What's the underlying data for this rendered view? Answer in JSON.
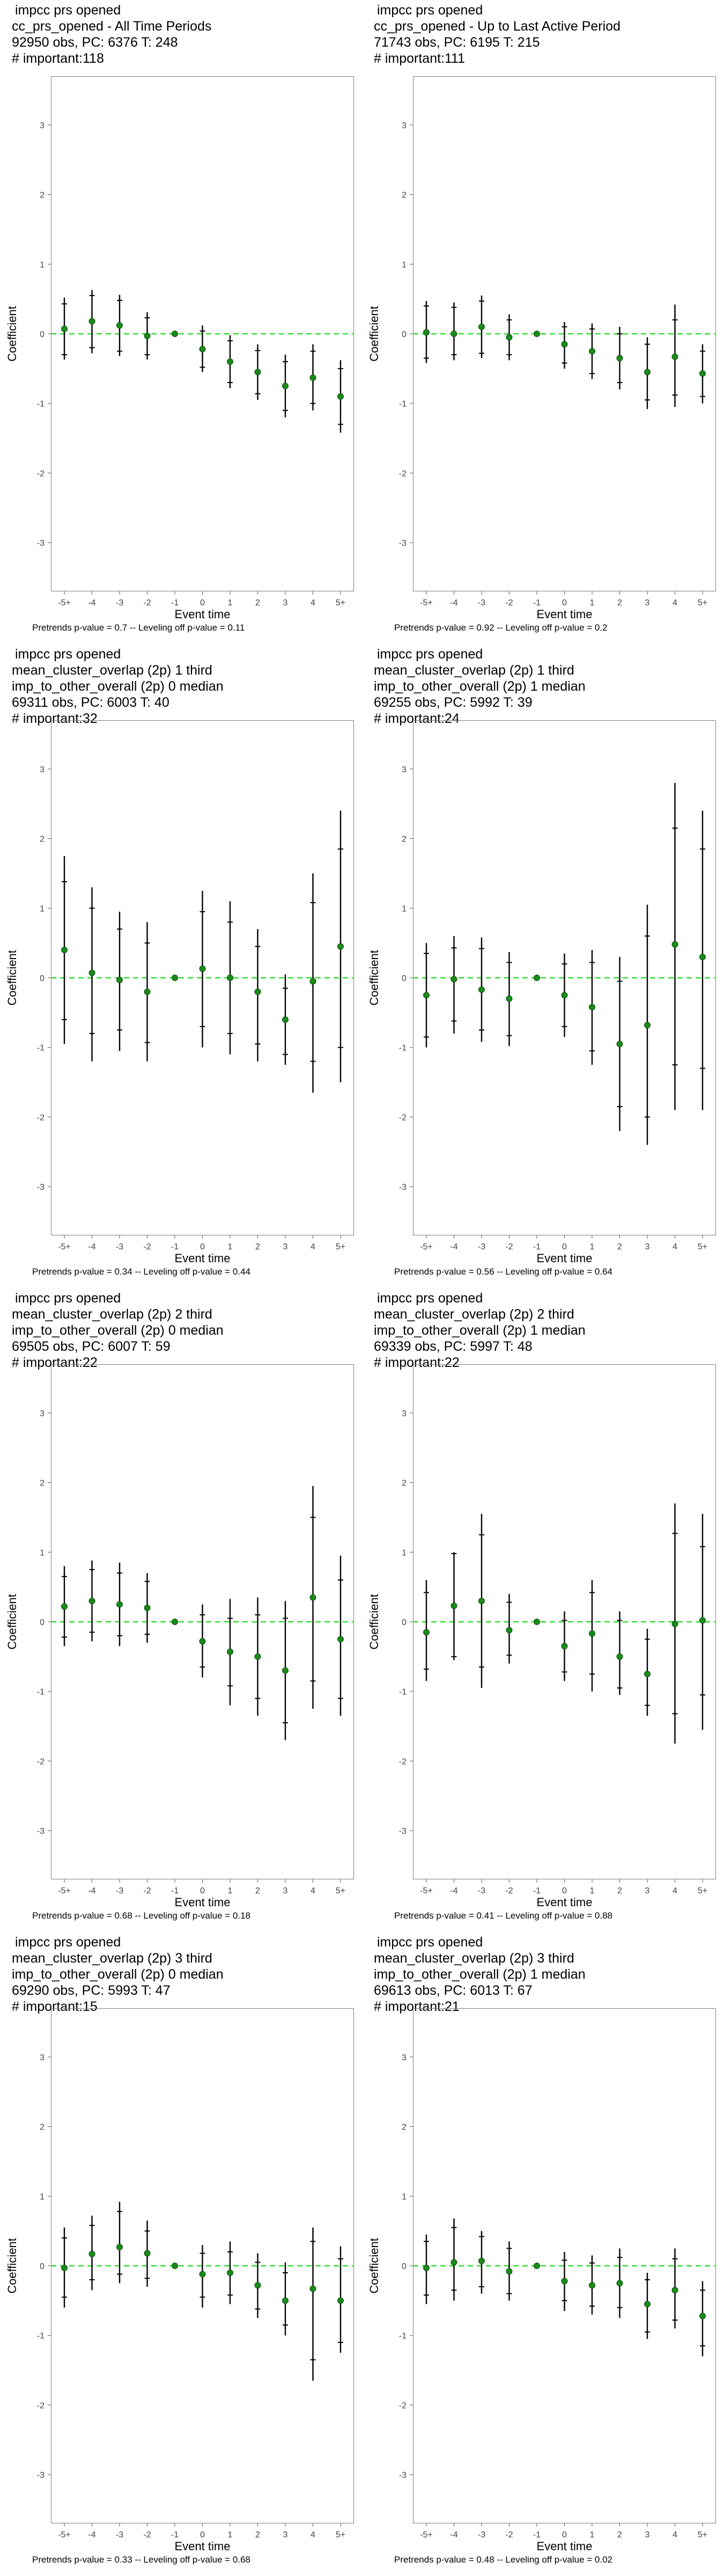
{
  "common": {
    "x_label": "Event time",
    "y_label": "Coefficient",
    "categories": [
      "-5+",
      "-4",
      "-3",
      "-2",
      "-1",
      "0",
      "1",
      "2",
      "3",
      "4",
      "5+"
    ],
    "y_ticks": [
      -3,
      -2,
      -1,
      0,
      1,
      2,
      3
    ],
    "ylim": [
      -3.7,
      3.7
    ],
    "point_color": "#1a8a1a",
    "zero_line_color": "#33dd33",
    "bar_color": "#000000"
  },
  "chart_data": [
    {
      "type": "scatter",
      "title_lines": [
        "impcc prs opened",
        "cc_prs_opened - All Time Periods",
        "92950 obs, PC: 6376 T: 248",
        "# important:118"
      ],
      "footer": "Pretrends p-value = 0.7 -- Leveling off p-value = 0.11",
      "estimate": [
        0.07,
        0.18,
        0.12,
        -0.03,
        0,
        -0.22,
        -0.4,
        -0.55,
        -0.75,
        -0.63,
        -0.9
      ],
      "ci_outer": [
        [
          -0.37,
          0.52
        ],
        [
          -0.28,
          0.63
        ],
        [
          -0.32,
          0.56
        ],
        [
          -0.37,
          0.31
        ],
        [
          0,
          0
        ],
        [
          -0.55,
          0.12
        ],
        [
          -0.78,
          -0.02
        ],
        [
          -0.95,
          -0.15
        ],
        [
          -1.2,
          -0.3
        ],
        [
          -1.1,
          -0.15
        ],
        [
          -1.42,
          -0.38
        ]
      ],
      "ci_inner": [
        [
          -0.3,
          0.43
        ],
        [
          -0.2,
          0.55
        ],
        [
          -0.25,
          0.48
        ],
        [
          -0.3,
          0.23
        ],
        [
          0,
          0
        ],
        [
          -0.48,
          0.04
        ],
        [
          -0.7,
          -0.1
        ],
        [
          -0.86,
          -0.24
        ],
        [
          -1.1,
          -0.4
        ],
        [
          -1.0,
          -0.25
        ],
        [
          -1.3,
          -0.5
        ]
      ]
    },
    {
      "type": "scatter",
      "title_lines": [
        "impcc prs opened",
        "cc_prs_opened - Up to Last Active Period",
        "71743 obs, PC: 6195 T: 215",
        "# important:111"
      ],
      "footer": "Pretrends p-value = 0.92 -- Leveling off p-value = 0.2",
      "estimate": [
        0.02,
        0.0,
        0.1,
        -0.05,
        0,
        -0.15,
        -0.25,
        -0.35,
        -0.55,
        -0.33,
        -0.57
      ],
      "ci_outer": [
        [
          -0.42,
          0.47
        ],
        [
          -0.38,
          0.45
        ],
        [
          -0.35,
          0.55
        ],
        [
          -0.38,
          0.28
        ],
        [
          0,
          0
        ],
        [
          -0.5,
          0.17
        ],
        [
          -0.65,
          0.15
        ],
        [
          -0.8,
          0.1
        ],
        [
          -1.08,
          -0.05
        ],
        [
          -1.05,
          0.42
        ],
        [
          -1.0,
          -0.15
        ]
      ],
      "ci_inner": [
        [
          -0.35,
          0.4
        ],
        [
          -0.3,
          0.38
        ],
        [
          -0.28,
          0.47
        ],
        [
          -0.3,
          0.2
        ],
        [
          0,
          0
        ],
        [
          -0.42,
          0.1
        ],
        [
          -0.57,
          0.07
        ],
        [
          -0.7,
          0.0
        ],
        [
          -0.95,
          -0.15
        ],
        [
          -0.88,
          0.2
        ],
        [
          -0.9,
          -0.25
        ]
      ]
    },
    {
      "type": "scatter",
      "title_lines": [
        "impcc prs opened",
        "mean_cluster_overlap (2p) 1 third",
        "imp_to_other_overall (2p) 0 median",
        "69311 obs, PC: 6003 T: 40",
        "# important:32"
      ],
      "footer": "Pretrends p-value = 0.34 -- Leveling off p-value = 0.44",
      "estimate": [
        0.4,
        0.07,
        -0.03,
        -0.2,
        0,
        0.13,
        0.0,
        -0.2,
        -0.6,
        -0.05,
        0.45
      ],
      "ci_outer": [
        [
          -0.95,
          1.75
        ],
        [
          -1.2,
          1.3
        ],
        [
          -1.05,
          0.95
        ],
        [
          -1.2,
          0.8
        ],
        [
          0,
          0
        ],
        [
          -1.0,
          1.25
        ],
        [
          -1.1,
          1.1
        ],
        [
          -1.2,
          0.7
        ],
        [
          -1.25,
          0.05
        ],
        [
          -1.65,
          1.5
        ],
        [
          -1.5,
          2.4
        ]
      ],
      "ci_inner": [
        [
          -0.6,
          1.38
        ],
        [
          -0.8,
          1.0
        ],
        [
          -0.75,
          0.7
        ],
        [
          -0.93,
          0.5
        ],
        [
          0,
          0
        ],
        [
          -0.7,
          0.95
        ],
        [
          -0.8,
          0.8
        ],
        [
          -0.95,
          0.45
        ],
        [
          -1.1,
          -0.15
        ],
        [
          -1.2,
          1.08
        ],
        [
          -1.0,
          1.85
        ]
      ]
    },
    {
      "type": "scatter",
      "title_lines": [
        "impcc prs opened",
        "mean_cluster_overlap (2p) 1 third",
        "imp_to_other_overall (2p) 1 median",
        "69255 obs, PC: 5992 T: 39",
        "# important:24"
      ],
      "footer": "Pretrends p-value = 0.56 -- Leveling off p-value = 0.64",
      "estimate": [
        -0.25,
        -0.02,
        -0.17,
        -0.3,
        0,
        -0.25,
        -0.42,
        -0.95,
        -0.68,
        0.48,
        0.3
      ],
      "ci_outer": [
        [
          -1.0,
          0.5
        ],
        [
          -0.8,
          0.6
        ],
        [
          -0.92,
          0.58
        ],
        [
          -0.98,
          0.37
        ],
        [
          0,
          0
        ],
        [
          -0.85,
          0.35
        ],
        [
          -1.25,
          0.4
        ],
        [
          -2.2,
          0.3
        ],
        [
          -2.4,
          1.05
        ],
        [
          -1.9,
          2.8
        ],
        [
          -1.9,
          2.4
        ]
      ],
      "ci_inner": [
        [
          -0.85,
          0.35
        ],
        [
          -0.62,
          0.43
        ],
        [
          -0.75,
          0.42
        ],
        [
          -0.83,
          0.22
        ],
        [
          0,
          0
        ],
        [
          -0.7,
          0.2
        ],
        [
          -1.05,
          0.22
        ],
        [
          -1.85,
          -0.05
        ],
        [
          -2.0,
          0.6
        ],
        [
          -1.25,
          2.15
        ],
        [
          -1.3,
          1.85
        ]
      ]
    },
    {
      "type": "scatter",
      "title_lines": [
        "impcc prs opened",
        "mean_cluster_overlap (2p) 2 third",
        "imp_to_other_overall (2p) 0 median",
        "69505 obs, PC: 6007 T: 59",
        "# important:22"
      ],
      "footer": "Pretrends p-value = 0.68 -- Leveling off p-value = 0.18",
      "estimate": [
        0.22,
        0.3,
        0.25,
        0.2,
        0,
        -0.28,
        -0.43,
        -0.5,
        -0.7,
        0.35,
        -0.25
      ],
      "ci_outer": [
        [
          -0.35,
          0.8
        ],
        [
          -0.28,
          0.88
        ],
        [
          -0.35,
          0.85
        ],
        [
          -0.3,
          0.7
        ],
        [
          0,
          0
        ],
        [
          -0.8,
          0.25
        ],
        [
          -1.2,
          0.33
        ],
        [
          -1.35,
          0.35
        ],
        [
          -1.7,
          0.3
        ],
        [
          -1.25,
          1.95
        ],
        [
          -1.35,
          0.95
        ]
      ],
      "ci_inner": [
        [
          -0.22,
          0.65
        ],
        [
          -0.15,
          0.75
        ],
        [
          -0.2,
          0.7
        ],
        [
          -0.18,
          0.58
        ],
        [
          0,
          0
        ],
        [
          -0.65,
          0.1
        ],
        [
          -0.92,
          0.05
        ],
        [
          -1.1,
          0.1
        ],
        [
          -1.45,
          0.05
        ],
        [
          -0.85,
          1.5
        ],
        [
          -1.1,
          0.6
        ]
      ]
    },
    {
      "type": "scatter",
      "title_lines": [
        "impcc prs opened",
        "mean_cluster_overlap (2p) 2 third",
        "imp_to_other_overall (2p) 1 median",
        "69339 obs, PC: 5997 T: 48",
        "# important:22"
      ],
      "footer": "Pretrends p-value = 0.41 -- Leveling off p-value = 0.88",
      "estimate": [
        -0.15,
        0.23,
        0.3,
        -0.12,
        0,
        -0.35,
        -0.17,
        -0.5,
        -0.75,
        -0.03,
        0.02
      ],
      "ci_outer": [
        [
          -0.85,
          0.6
        ],
        [
          -0.55,
          1.0
        ],
        [
          -0.95,
          1.55
        ],
        [
          -0.6,
          0.4
        ],
        [
          0,
          0
        ],
        [
          -0.85,
          0.15
        ],
        [
          -1.0,
          0.6
        ],
        [
          -1.05,
          0.15
        ],
        [
          -1.35,
          -0.1
        ],
        [
          -1.75,
          1.7
        ],
        [
          -1.55,
          1.55
        ]
      ],
      "ci_inner": [
        [
          -0.68,
          0.42
        ],
        [
          -0.5,
          0.98
        ],
        [
          -0.65,
          1.25
        ],
        [
          -0.48,
          0.28
        ],
        [
          0,
          0
        ],
        [
          -0.72,
          0.02
        ],
        [
          -0.75,
          0.42
        ],
        [
          -0.95,
          0.02
        ],
        [
          -1.2,
          -0.25
        ],
        [
          -1.32,
          1.27
        ],
        [
          -1.05,
          1.08
        ]
      ]
    },
    {
      "type": "scatter",
      "title_lines": [
        "impcc prs opened",
        "mean_cluster_overlap (2p) 3 third",
        "imp_to_other_overall (2p) 0 median",
        "69290 obs, PC: 5993 T: 47",
        "# important:15"
      ],
      "footer": "Pretrends p-value = 0.33 -- Leveling off p-value = 0.68",
      "estimate": [
        -0.03,
        0.17,
        0.27,
        0.18,
        0,
        -0.12,
        -0.1,
        -0.28,
        -0.5,
        -0.33,
        -0.5
      ],
      "ci_outer": [
        [
          -0.6,
          0.55
        ],
        [
          -0.35,
          0.72
        ],
        [
          -0.25,
          0.92
        ],
        [
          -0.3,
          0.65
        ],
        [
          0,
          0
        ],
        [
          -0.6,
          0.3
        ],
        [
          -0.55,
          0.35
        ],
        [
          -0.75,
          0.18
        ],
        [
          -1.0,
          0.05
        ],
        [
          -1.65,
          0.55
        ],
        [
          -1.25,
          0.28
        ]
      ],
      "ci_inner": [
        [
          -0.45,
          0.4
        ],
        [
          -0.2,
          0.58
        ],
        [
          -0.12,
          0.78
        ],
        [
          -0.18,
          0.5
        ],
        [
          0,
          0
        ],
        [
          -0.45,
          0.18
        ],
        [
          -0.42,
          0.2
        ],
        [
          -0.62,
          0.05
        ],
        [
          -0.85,
          -0.1
        ],
        [
          -1.35,
          0.35
        ],
        [
          -1.1,
          0.1
        ]
      ]
    },
    {
      "type": "scatter",
      "title_lines": [
        "impcc prs opened",
        "mean_cluster_overlap (2p) 3 third",
        "imp_to_other_overall (2p) 1 median",
        "69613 obs, PC: 6013 T: 67",
        "# important:21"
      ],
      "footer": "Pretrends p-value = 0.48 -- Leveling off p-value = 0.02",
      "estimate": [
        -0.03,
        0.05,
        0.07,
        -0.08,
        0,
        -0.22,
        -0.28,
        -0.25,
        -0.55,
        -0.35,
        -0.72
      ],
      "ci_outer": [
        [
          -0.55,
          0.45
        ],
        [
          -0.5,
          0.68
        ],
        [
          -0.4,
          0.5
        ],
        [
          -0.5,
          0.35
        ],
        [
          0,
          0
        ],
        [
          -0.65,
          0.2
        ],
        [
          -0.7,
          0.15
        ],
        [
          -0.75,
          0.25
        ],
        [
          -1.05,
          -0.1
        ],
        [
          -0.9,
          0.25
        ],
        [
          -1.3,
          -0.22
        ]
      ],
      "ci_inner": [
        [
          -0.42,
          0.35
        ],
        [
          -0.35,
          0.55
        ],
        [
          -0.3,
          0.42
        ],
        [
          -0.4,
          0.25
        ],
        [
          0,
          0
        ],
        [
          -0.5,
          0.08
        ],
        [
          -0.58,
          0.04
        ],
        [
          -0.6,
          0.12
        ],
        [
          -0.95,
          -0.2
        ],
        [
          -0.78,
          0.1
        ],
        [
          -1.15,
          -0.35
        ]
      ]
    }
  ]
}
